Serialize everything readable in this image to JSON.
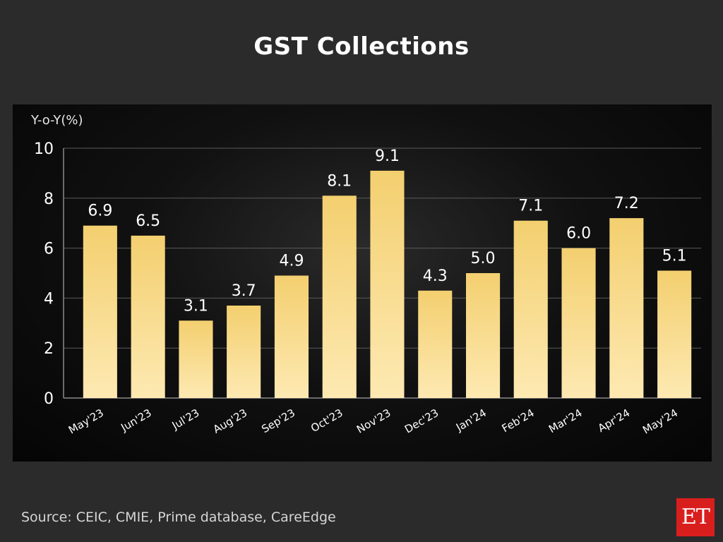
{
  "chart_data": {
    "type": "bar",
    "title": "GST Collections",
    "ylabel": "Y-o-Y(%)",
    "xlabel": "",
    "categories": [
      "May'23",
      "Jun'23",
      "Jul'23",
      "Aug'23",
      "Sep'23",
      "Oct'23",
      "Nov'23",
      "Dec'23",
      "Jan'24",
      "Feb'24",
      "Mar'24",
      "Apr'24",
      "May'24"
    ],
    "values": [
      6.9,
      6.5,
      3.1,
      3.7,
      4.9,
      8.1,
      9.1,
      4.3,
      5.0,
      7.1,
      6.0,
      7.2,
      5.1
    ],
    "value_labels": [
      "6.9",
      "6.5",
      "3.1",
      "3.7",
      "4.9",
      "8.1",
      "9.1",
      "4.3",
      "5.0",
      "7.1",
      "6.0",
      "7.2",
      "5.1"
    ],
    "ylim": [
      0,
      10
    ],
    "yticks": [
      "0",
      "2",
      "4",
      "6",
      "8",
      "10"
    ],
    "grid": true,
    "legend": "none",
    "bar_color_top": "#f3cf6f",
    "bar_color_bottom": "#fde9b2",
    "grid_color": "#5a5a5a"
  },
  "source": "Source: CEIC, CMIE, Prime database, CareEdge",
  "logo_text": "ET"
}
